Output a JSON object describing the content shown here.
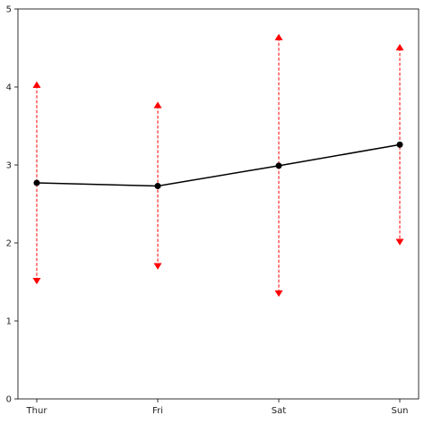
{
  "chart_data": {
    "type": "line",
    "title": "",
    "xlabel": "",
    "ylabel": "",
    "categories": [
      "Thur",
      "Fri",
      "Sat",
      "Sun"
    ],
    "ylim": [
      0,
      5
    ],
    "yticks": [
      "0",
      "1",
      "2",
      "3",
      "4",
      "5"
    ],
    "grid": false,
    "series": [
      {
        "role": "mean",
        "color": "#000000",
        "marker": "circle",
        "values": [
          2.77,
          2.73,
          2.99,
          3.26
        ]
      }
    ],
    "error_ranges": {
      "color": "#ff0000",
      "line_style": "dashed",
      "upper_marker": "triangle-up",
      "lower_marker": "triangle-down",
      "upper": [
        4.02,
        3.76,
        4.63,
        4.5
      ],
      "lower": [
        1.52,
        1.71,
        1.36,
        2.02
      ]
    }
  }
}
